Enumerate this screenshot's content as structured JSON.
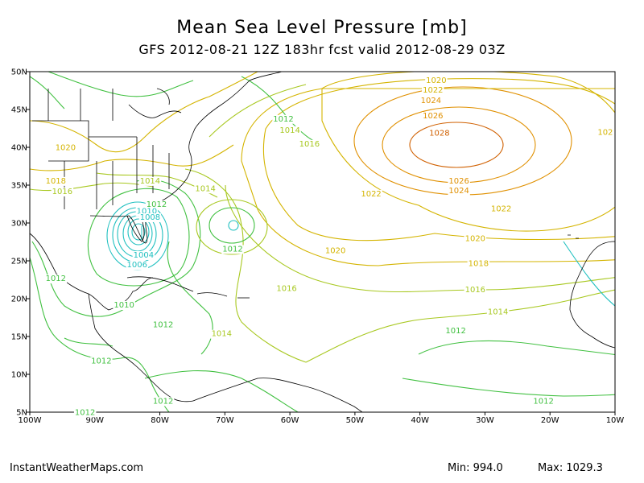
{
  "header": {
    "title": "Mean Sea Level Pressure [mb]",
    "subtitle": "GFS 2012-08-21 12Z 183hr fcst valid 2012-08-29 03Z"
  },
  "footer": {
    "credit": "InstantWeatherMaps.com",
    "min": "Min:  994.0",
    "max": "Max: 1029.3"
  },
  "axes": {
    "lat_labels": [
      "50N",
      "45N",
      "40N",
      "35N",
      "30N",
      "25N",
      "20N",
      "15N",
      "10N",
      "5N"
    ],
    "lon_labels": [
      "100W",
      "90W",
      "80W",
      "70W",
      "60W",
      "50W",
      "40W",
      "30W",
      "20W",
      "10W"
    ],
    "lat_range": [
      5,
      50
    ],
    "lon_range": [
      -100,
      -10
    ]
  },
  "colors": {
    "green": "#40c040",
    "yellowgreen": "#a8c820",
    "yellow": "#d4b400",
    "orange": "#e09000",
    "darkorange": "#d06000",
    "cyan": "#20c0c0",
    "coast": "#000000"
  },
  "contour_labels": [
    {
      "text": "1020",
      "lat": 48.9,
      "lon": -37.5,
      "color": "yellow"
    },
    {
      "text": "1022",
      "lat": 47.6,
      "lon": -38.0,
      "color": "yellow"
    },
    {
      "text": "1024",
      "lat": 46.2,
      "lon": -38.3,
      "color": "orange"
    },
    {
      "text": "1026",
      "lat": 44.2,
      "lon": -38.0,
      "color": "orange"
    },
    {
      "text": "1028",
      "lat": 41.9,
      "lon": -37.0,
      "color": "darkorange"
    },
    {
      "text": "102",
      "lat": 42.0,
      "lon": -11.5,
      "color": "yellow"
    },
    {
      "text": "1012",
      "lat": 43.8,
      "lon": -61.0,
      "color": "green"
    },
    {
      "text": "1014",
      "lat": 42.3,
      "lon": -60.0,
      "color": "yellowgreen"
    },
    {
      "text": "1016",
      "lat": 40.5,
      "lon": -57.0,
      "color": "yellowgreen"
    },
    {
      "text": "1020",
      "lat": 40.0,
      "lon": -94.5,
      "color": "yellow"
    },
    {
      "text": "1018",
      "lat": 35.6,
      "lon": -96.0,
      "color": "yellow"
    },
    {
      "text": "1016",
      "lat": 34.2,
      "lon": -95.0,
      "color": "yellowgreen"
    },
    {
      "text": "1014",
      "lat": 35.6,
      "lon": -81.5,
      "color": "yellowgreen"
    },
    {
      "text": "1014",
      "lat": 34.6,
      "lon": -73.0,
      "color": "yellowgreen"
    },
    {
      "text": "1012",
      "lat": 32.5,
      "lon": -80.5,
      "color": "green"
    },
    {
      "text": "1010",
      "lat": 31.6,
      "lon": -82.0,
      "color": "cyan"
    },
    {
      "text": "1008",
      "lat": 30.8,
      "lon": -81.5,
      "color": "cyan"
    },
    {
      "text": "1012",
      "lat": 26.6,
      "lon": -68.8,
      "color": "green"
    },
    {
      "text": "1004",
      "lat": 25.8,
      "lon": -82.5,
      "color": "cyan"
    },
    {
      "text": "1006",
      "lat": 24.5,
      "lon": -83.5,
      "color": "cyan"
    },
    {
      "text": "1012",
      "lat": 22.7,
      "lon": -96.0,
      "color": "green"
    },
    {
      "text": "1010",
      "lat": 19.2,
      "lon": -85.5,
      "color": "green"
    },
    {
      "text": "1012",
      "lat": 16.6,
      "lon": -79.5,
      "color": "green"
    },
    {
      "text": "1014",
      "lat": 15.4,
      "lon": -70.5,
      "color": "yellowgreen"
    },
    {
      "text": "1012",
      "lat": 11.8,
      "lon": -89.0,
      "color": "green"
    },
    {
      "text": "1012",
      "lat": 6.5,
      "lon": -79.5,
      "color": "green"
    },
    {
      "text": "1012",
      "lat": 5.0,
      "lon": -91.5,
      "color": "green"
    },
    {
      "text": "1022",
      "lat": 33.9,
      "lon": -47.5,
      "color": "yellow"
    },
    {
      "text": "1026",
      "lat": 35.6,
      "lon": -34.0,
      "color": "orange"
    },
    {
      "text": "1024",
      "lat": 34.3,
      "lon": -34.0,
      "color": "orange"
    },
    {
      "text": "1022",
      "lat": 31.9,
      "lon": -27.5,
      "color": "yellow"
    },
    {
      "text": "1020",
      "lat": 26.4,
      "lon": -53.0,
      "color": "yellow"
    },
    {
      "text": "1020",
      "lat": 28.0,
      "lon": -31.5,
      "color": "yellow"
    },
    {
      "text": "1018",
      "lat": 24.7,
      "lon": -31.0,
      "color": "yellow"
    },
    {
      "text": "1016",
      "lat": 21.4,
      "lon": -60.5,
      "color": "yellowgreen"
    },
    {
      "text": "1016",
      "lat": 21.2,
      "lon": -31.5,
      "color": "yellowgreen"
    },
    {
      "text": "1014",
      "lat": 18.3,
      "lon": -28.0,
      "color": "yellowgreen"
    },
    {
      "text": "1012",
      "lat": 15.8,
      "lon": -34.5,
      "color": "green"
    },
    {
      "text": "1012",
      "lat": 6.5,
      "lon": -21.0,
      "color": "green"
    }
  ]
}
